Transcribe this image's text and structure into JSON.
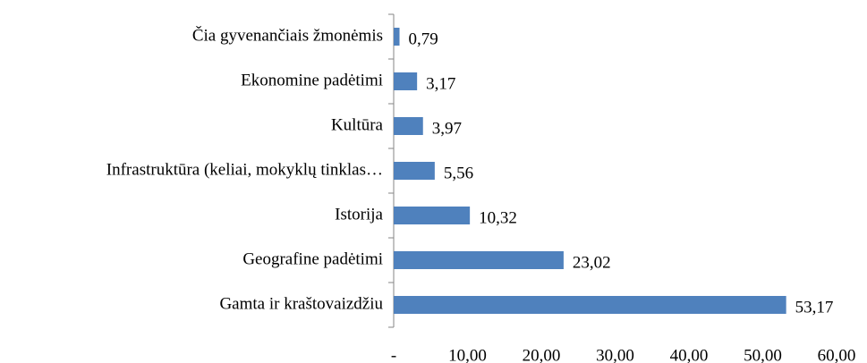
{
  "chart_data": {
    "type": "barh",
    "categories": [
      "Čia gyvenančiais žmonėmis",
      "Ekonomine padėtimi",
      "Kultūra",
      "Infrastruktūra (keliai, mokyklų tinklas…",
      "Istorija",
      "Geografine padėtimi",
      "Gamta ir kraštovaizdžiu"
    ],
    "values": [
      0.79,
      3.17,
      3.97,
      5.56,
      10.32,
      23.02,
      53.17
    ],
    "value_labels": [
      "0,79",
      "3,17",
      "3,97",
      "5,56",
      "10,32",
      "23,02",
      "53,17"
    ],
    "color": "#4f81bd",
    "xlim": [
      0,
      60
    ],
    "xticks": [
      {
        "value": 0,
        "label": "-"
      },
      {
        "value": 10,
        "label": "10,00"
      },
      {
        "value": 20,
        "label": "20,00"
      },
      {
        "value": 30,
        "label": "30,00"
      },
      {
        "value": 40,
        "label": "40,00"
      },
      {
        "value": 50,
        "label": "50,00"
      },
      {
        "value": 60,
        "label": "60,00"
      }
    ]
  }
}
